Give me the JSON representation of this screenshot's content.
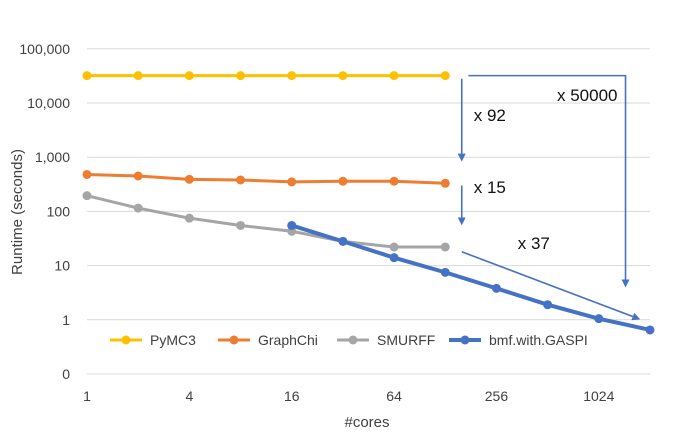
{
  "chart_data": {
    "type": "line",
    "title": "",
    "xlabel": "#cores",
    "ylabel": "Runtime  (seconds)",
    "x_scale": "log2",
    "x_ticks": [
      1,
      4,
      16,
      64,
      256,
      1024
    ],
    "x_tick_labels": [
      "1",
      "4",
      "16",
      "64",
      "256",
      "1024"
    ],
    "xlim": [
      1,
      2048
    ],
    "y_scale": "log10-with-zero",
    "y_ticks": [
      0,
      1,
      10,
      100,
      1000,
      10000,
      100000
    ],
    "y_tick_labels": [
      "0",
      "1",
      "10",
      "100",
      "1,000",
      "10,000",
      "100,000"
    ],
    "grid": "horizontal",
    "legend_position": "bottom-left",
    "series": [
      {
        "name": "PyMC3",
        "color": "#FFC000",
        "x": [
          1,
          2,
          4,
          8,
          16,
          32,
          64,
          128
        ],
        "y": [
          32000,
          32000,
          32000,
          32000,
          32000,
          32000,
          32000,
          32000
        ]
      },
      {
        "name": "GraphChi",
        "color": "#ED7D31",
        "x": [
          1,
          2,
          4,
          8,
          16,
          32,
          64,
          128
        ],
        "y": [
          480,
          450,
          390,
          380,
          350,
          360,
          360,
          330
        ]
      },
      {
        "name": "SMURFF",
        "color": "#A5A5A5",
        "x": [
          1,
          2,
          4,
          8,
          16,
          32,
          64,
          128
        ],
        "y": [
          195,
          115,
          75,
          55,
          43,
          28,
          22,
          22
        ]
      },
      {
        "name": "bmf.with.GASPI",
        "color": "#4472C4",
        "x": [
          16,
          32,
          64,
          128,
          256,
          512,
          1024,
          2048
        ],
        "y": [
          55,
          28,
          14,
          7.5,
          3.8,
          1.9,
          1.05,
          0.65
        ]
      }
    ],
    "annotations": [
      {
        "text": "x 92",
        "color": "#4472C4"
      },
      {
        "text": "x 15",
        "color": "#4472C4"
      },
      {
        "text": "x 37",
        "color": "#4472C4"
      },
      {
        "text": "x 50000",
        "color": "#4472C4"
      }
    ]
  }
}
